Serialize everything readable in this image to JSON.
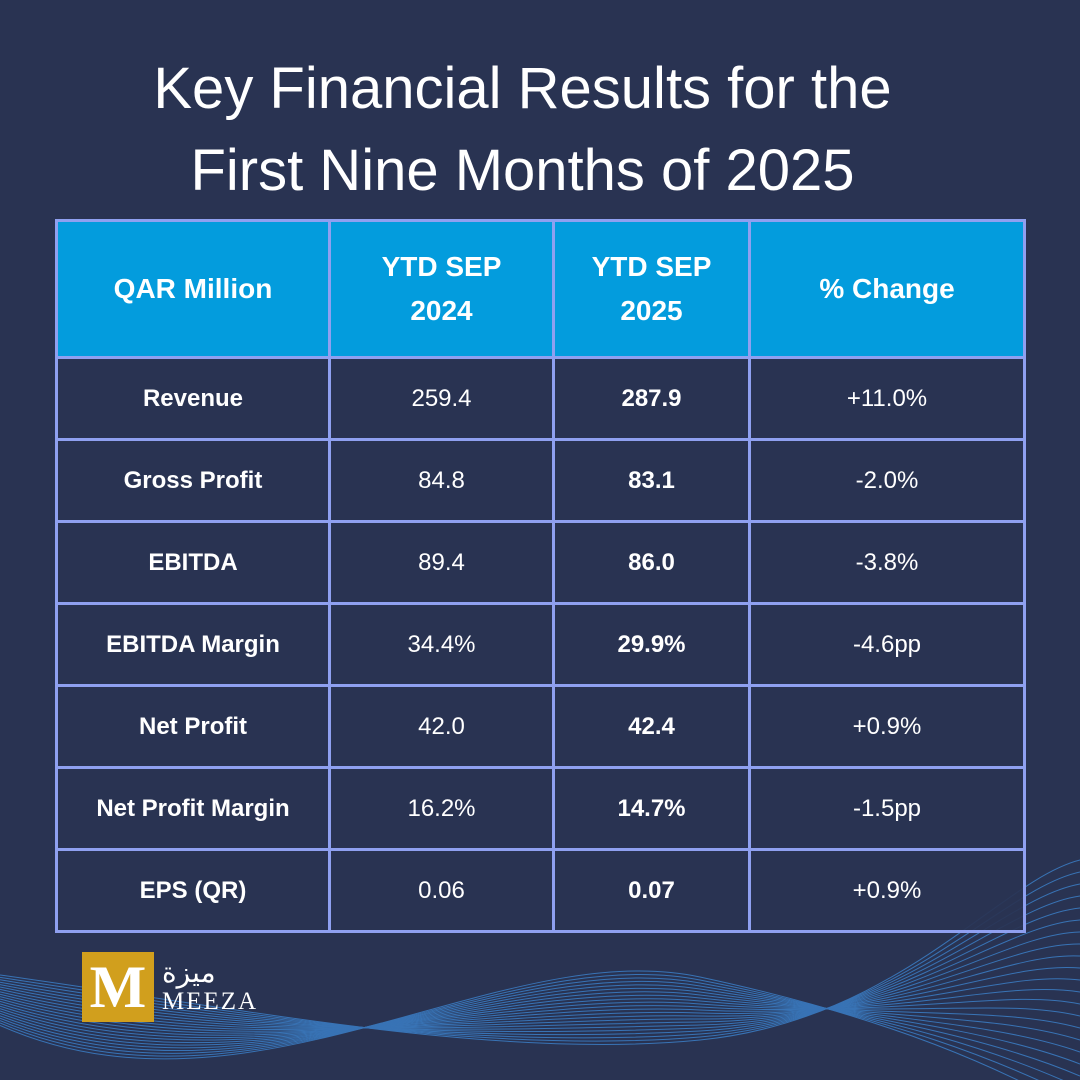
{
  "title_line1": "Key Financial Results for the",
  "title_line2": "First Nine Months of 2025",
  "headers": [
    "QAR Million",
    "YTD SEP 2024",
    "YTD SEP 2025",
    "% Change"
  ],
  "rows": [
    {
      "label": "Revenue",
      "y2024": "259.4",
      "y2025": "287.9",
      "change": "+11.0%"
    },
    {
      "label": "Gross Profit",
      "y2024": "84.8",
      "y2025": "83.1",
      "change": "-2.0%"
    },
    {
      "label": "EBITDA",
      "y2024": "89.4",
      "y2025": "86.0",
      "change": "-3.8%"
    },
    {
      "label": "EBITDA Margin",
      "y2024": "34.4%",
      "y2025": "29.9%",
      "change": "-4.6pp"
    },
    {
      "label": "Net Profit",
      "y2024": "42.0",
      "y2025": "42.4",
      "change": "+0.9%"
    },
    {
      "label": "Net Profit Margin",
      "y2024": "16.2%",
      "y2025": "14.7%",
      "change": "-1.5pp"
    },
    {
      "label": "EPS (QR)",
      "y2024": "0.06",
      "y2025": "0.07",
      "change": "+0.9%"
    }
  ],
  "logo": {
    "mark": "M",
    "arabic": "ميزة",
    "english": "MEEZA"
  },
  "colors": {
    "background": "#293352",
    "header": "#039cdd",
    "border": "#8fa0f0",
    "logo": "#d19f1d"
  }
}
